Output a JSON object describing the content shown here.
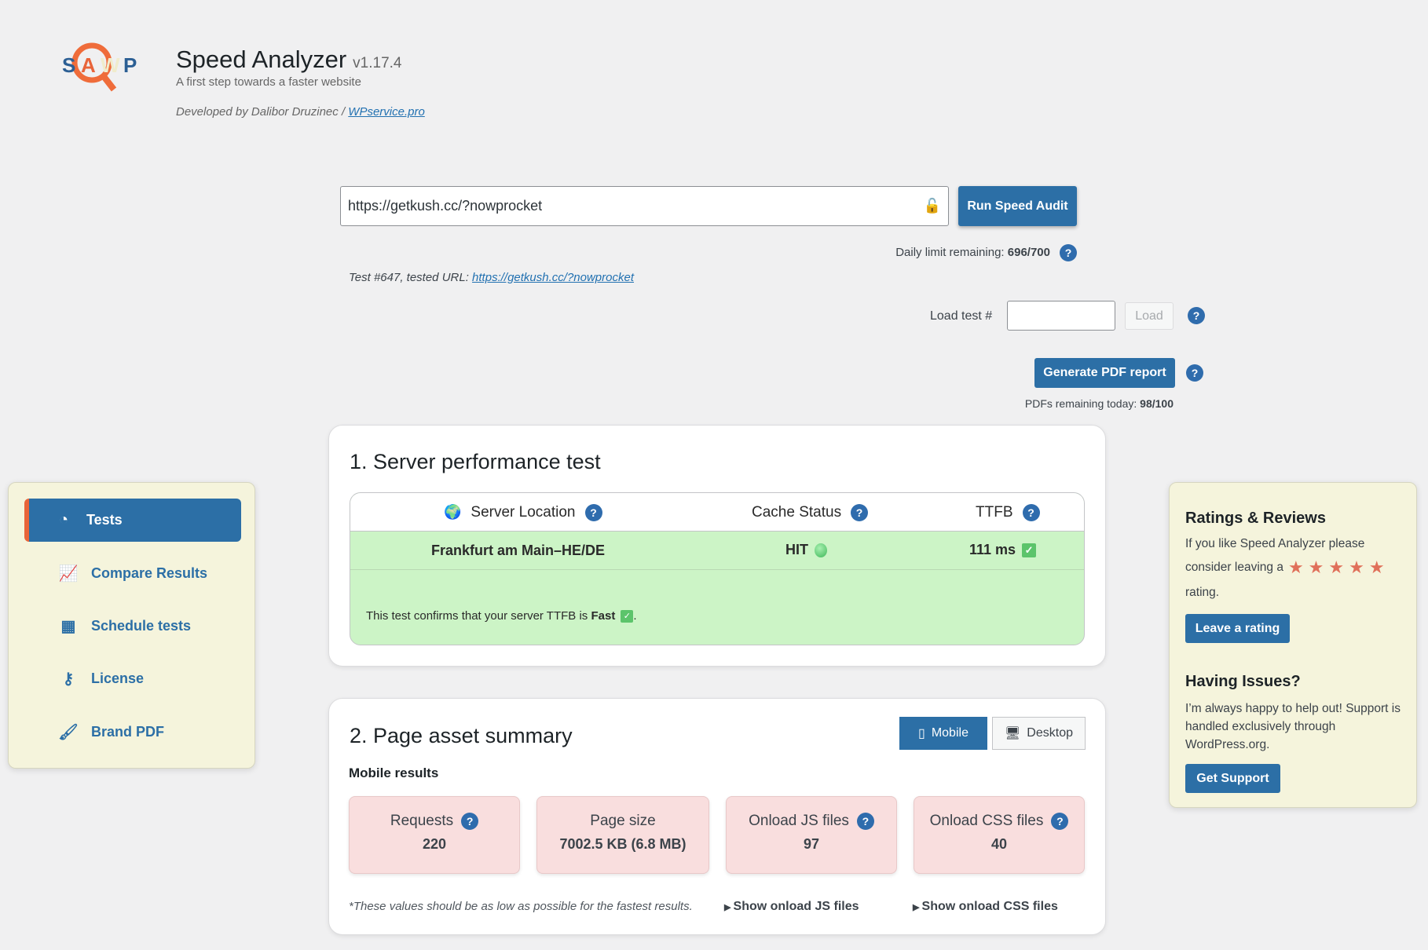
{
  "header": {
    "logo_letters": [
      "S",
      "A",
      "W",
      "P"
    ],
    "title": "Speed Analyzer",
    "version": "v1.17.4",
    "subtitle": "A first step towards a faster website",
    "developed_by": "Developed by Dalibor Druzinec / ",
    "developer_link": "WPservice.pro"
  },
  "audit": {
    "url_value": "https://getkush.cc/?nowprocket",
    "run_button": "Run Speed Audit",
    "daily_limit_label": "Daily limit remaining:",
    "daily_limit_value": "696/700",
    "test_info": "Test #647, tested URL: ",
    "test_url": "https://getkush.cc/?nowprocket",
    "load_label": "Load test #",
    "load_value": "",
    "load_button": "Load",
    "pdf_button": "Generate PDF report",
    "pdf_remaining_label": "PDFs remaining today:",
    "pdf_remaining_value": "98/100"
  },
  "sidebar": {
    "items": [
      {
        "label": "Tests",
        "icon": "dashboard-icon",
        "active": true
      },
      {
        "label": "Compare Results",
        "icon": "chart-line-icon"
      },
      {
        "label": "Schedule tests",
        "icon": "calendar-icon"
      },
      {
        "label": "License",
        "icon": "key-icon"
      },
      {
        "label": "Brand PDF",
        "icon": "brush-icon"
      }
    ]
  },
  "server": {
    "title": "1. Server performance test",
    "headers": [
      "Server Location",
      "Cache Status",
      "TTFB"
    ],
    "location": "Frankfurt am Main–HE/DE",
    "cache": "HIT",
    "ttfb": "111 ms",
    "message_prefix": "This test confirms that your server TTFB is ",
    "message_bold": "Fast",
    "message_suffix": "."
  },
  "assets": {
    "title": "2. Page asset summary",
    "tabs": [
      "Mobile",
      "Desktop"
    ],
    "subtitle": "Mobile results",
    "metrics": [
      {
        "label": "Requests",
        "value": "220"
      },
      {
        "label": "Page size",
        "value": "7002.5 KB (6.8 MB)"
      },
      {
        "label": "Onload JS files",
        "value": "97"
      },
      {
        "label": "Onload CSS files",
        "value": "40"
      }
    ],
    "note": "*These values should be as low as possible for the fastest results.",
    "show_js": "Show onload JS files",
    "show_css": "Show onload CSS files"
  },
  "right_panel": {
    "ratings_title": "Ratings & Reviews",
    "ratings_text_1": "If you like Speed Analyzer please",
    "ratings_text_2": "consider leaving a",
    "ratings_text_3": "rating.",
    "stars": 5,
    "leave_button": "Leave a rating",
    "issues_title": "Having Issues?",
    "issues_text": "I’m always happy to help out! Support is handled exclusively through WordPress.org.",
    "support_button": "Get Support"
  },
  "colors": {
    "accent": "#2c6fa6",
    "orange": "#e8643a",
    "green_bg": "#ccf4c6",
    "pink_bg": "#f9dede",
    "panel_bg": "#f5f4dc"
  }
}
